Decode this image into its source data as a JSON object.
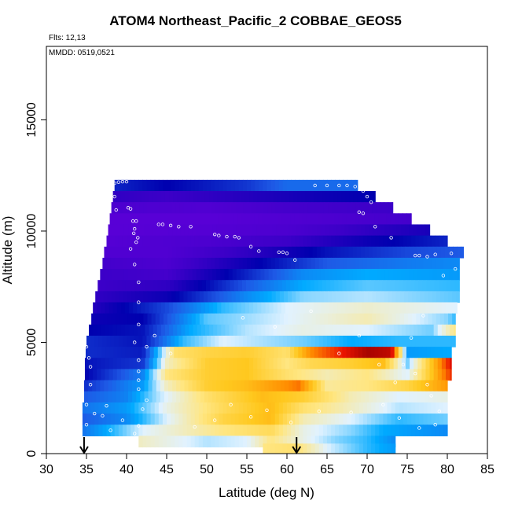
{
  "chart_data": {
    "type": "heatmap",
    "title": "ATOM4 Northeast_Pacific_2 COBBAE_GEOS5",
    "annotations": [
      "Flts: 12,13",
      "MMDD: 0519,0521"
    ],
    "xlabel": "Latitude (deg N)",
    "ylabel": "Altitude (m)",
    "xlim": [
      30,
      85
    ],
    "ylim": [
      0,
      18300
    ],
    "x_ticks": [
      30,
      35,
      40,
      45,
      50,
      55,
      60,
      65,
      70,
      75,
      80,
      85
    ],
    "y_ticks": [
      0,
      5000,
      10000,
      15000
    ],
    "grid": false,
    "legend": "none",
    "arrow_markers_latitude": [
      34.7,
      61.2
    ],
    "altitude_bands": [
      {
        "alt": 12050,
        "lat_min": 38.5,
        "lat_max": 68.8,
        "segments": [
          [
            38.5,
            0.24
          ],
          [
            45,
            0.2
          ],
          [
            55,
            0.26
          ],
          [
            60,
            0.32
          ],
          [
            68.8,
            0.32
          ]
        ]
      },
      {
        "alt": 11550,
        "lat_min": 38.3,
        "lat_max": 71.0,
        "segments": [
          [
            38.3,
            0.12
          ],
          [
            45,
            0.1
          ],
          [
            55,
            0.14
          ],
          [
            65,
            0.18
          ],
          [
            71.0,
            0.2
          ]
        ]
      },
      {
        "alt": 11050,
        "lat_min": 38.1,
        "lat_max": 73.2,
        "segments": [
          [
            38.1,
            0.06
          ],
          [
            50,
            0.05
          ],
          [
            60,
            0.08
          ],
          [
            73.2,
            0.1
          ]
        ]
      },
      {
        "alt": 10550,
        "lat_min": 37.9,
        "lat_max": 75.5,
        "segments": [
          [
            37.9,
            0.03
          ],
          [
            50,
            0.03
          ],
          [
            65,
            0.06
          ],
          [
            75.5,
            0.08
          ]
        ]
      },
      {
        "alt": 10050,
        "lat_min": 37.7,
        "lat_max": 77.8,
        "segments": [
          [
            37.7,
            0.03
          ],
          [
            50,
            0.04
          ],
          [
            60,
            0.06
          ],
          [
            70,
            0.12
          ],
          [
            77.8,
            0.16
          ]
        ]
      },
      {
        "alt": 9550,
        "lat_min": 37.5,
        "lat_max": 80.0,
        "segments": [
          [
            37.5,
            0.04
          ],
          [
            50,
            0.06
          ],
          [
            60,
            0.1
          ],
          [
            70,
            0.18
          ],
          [
            80.0,
            0.24
          ]
        ]
      },
      {
        "alt": 9050,
        "lat_min": 37.2,
        "lat_max": 82.0,
        "segments": [
          [
            37.2,
            0.05
          ],
          [
            45,
            0.05
          ],
          [
            55,
            0.12
          ],
          [
            65,
            0.22
          ],
          [
            75,
            0.28
          ],
          [
            82.0,
            0.3
          ]
        ]
      },
      {
        "alt": 8550,
        "lat_min": 37.0,
        "lat_max": 81.5,
        "segments": [
          [
            37.0,
            0.08
          ],
          [
            45,
            0.06
          ],
          [
            55,
            0.18
          ],
          [
            65,
            0.3
          ],
          [
            75,
            0.34
          ],
          [
            81.5,
            0.36
          ]
        ]
      },
      {
        "alt": 8050,
        "lat_min": 36.7,
        "lat_max": 81.5,
        "segments": [
          [
            36.7,
            0.1
          ],
          [
            45,
            0.08
          ],
          [
            55,
            0.24
          ],
          [
            62,
            0.36
          ],
          [
            70,
            0.4
          ],
          [
            81.5,
            0.38
          ]
        ]
      },
      {
        "alt": 7550,
        "lat_min": 36.4,
        "lat_max": 81.5,
        "segments": [
          [
            36.4,
            0.1
          ],
          [
            45,
            0.12
          ],
          [
            55,
            0.3
          ],
          [
            62,
            0.4
          ],
          [
            70,
            0.44
          ],
          [
            81.5,
            0.42
          ]
        ]
      },
      {
        "alt": 7050,
        "lat_min": 36.1,
        "lat_max": 81.5,
        "segments": [
          [
            36.1,
            0.12
          ],
          [
            45,
            0.18
          ],
          [
            55,
            0.36
          ],
          [
            62,
            0.46
          ],
          [
            70,
            0.48
          ],
          [
            81.5,
            0.44
          ]
        ]
      },
      {
        "alt": 6550,
        "lat_min": 35.8,
        "lat_max": 81.2,
        "segments": [
          [
            35.8,
            0.14
          ],
          [
            45,
            0.28
          ],
          [
            52,
            0.42
          ],
          [
            60,
            0.5
          ],
          [
            70,
            0.54
          ],
          [
            81.2,
            0.5
          ]
        ]
      },
      {
        "alt": 6050,
        "lat_min": 35.6,
        "lat_max": 81.0,
        "segments": [
          [
            35.6,
            0.18
          ],
          [
            42,
            0.2
          ],
          [
            50,
            0.44
          ],
          [
            60,
            0.5
          ],
          [
            70,
            0.56
          ],
          [
            80.0,
            0.46
          ],
          [
            81.0,
            0.42
          ]
        ]
      },
      {
        "alt": 5550,
        "lat_min": 35.3,
        "lat_max": 81.0,
        "segments": [
          [
            35.3,
            0.2
          ],
          [
            42,
            0.22
          ],
          [
            48,
            0.4
          ],
          [
            55,
            0.48
          ],
          [
            62,
            0.52
          ],
          [
            70,
            0.5
          ],
          [
            78,
            0.45
          ],
          [
            81.0,
            0.6
          ]
        ]
      },
      {
        "alt": 5050,
        "lat_min": 35.0,
        "lat_max": 81.0,
        "segments": [
          [
            35.0,
            0.25
          ],
          [
            42,
            0.22
          ],
          [
            47,
            0.42
          ],
          [
            52,
            0.5
          ],
          [
            58,
            0.47
          ],
          [
            62,
            0.45
          ],
          [
            68,
            0.4
          ],
          [
            74,
            0.42
          ],
          [
            81.0,
            0.42
          ]
        ]
      },
      {
        "alt": 4550,
        "lat_min": 34.9,
        "lat_max": 80.5,
        "segments": [
          [
            34.9,
            0.25
          ],
          [
            42,
            0.23
          ],
          [
            46,
            0.62
          ],
          [
            50,
            0.66
          ],
          [
            55,
            0.68
          ],
          [
            60,
            0.62
          ],
          [
            63,
            0.8
          ],
          [
            67,
            0.9
          ],
          [
            70,
            0.98
          ],
          [
            73,
            0.95
          ],
          [
            75,
            0.38
          ],
          [
            80.5,
            0.4
          ]
        ]
      },
      {
        "alt": 4050,
        "lat_min": 34.8,
        "lat_max": 80.5,
        "segments": [
          [
            34.8,
            0.22
          ],
          [
            42,
            0.26
          ],
          [
            45,
            0.55
          ],
          [
            50,
            0.68
          ],
          [
            55,
            0.7
          ],
          [
            60,
            0.6
          ],
          [
            63,
            0.65
          ],
          [
            68,
            0.68
          ],
          [
            72,
            0.72
          ],
          [
            75,
            0.45
          ],
          [
            78,
            0.7
          ],
          [
            80.5,
            0.92
          ]
        ]
      },
      {
        "alt": 3550,
        "lat_min": 34.8,
        "lat_max": 80.5,
        "segments": [
          [
            34.8,
            0.2
          ],
          [
            42,
            0.35
          ],
          [
            45,
            0.6
          ],
          [
            50,
            0.68
          ],
          [
            55,
            0.7
          ],
          [
            60,
            0.62
          ],
          [
            65,
            0.56
          ],
          [
            70,
            0.6
          ],
          [
            75,
            0.5
          ],
          [
            78,
            0.7
          ],
          [
            80.5,
            0.88
          ]
        ]
      },
      {
        "alt": 3050,
        "lat_min": 34.7,
        "lat_max": 80.0,
        "segments": [
          [
            34.7,
            0.25
          ],
          [
            42,
            0.38
          ],
          [
            45,
            0.55
          ],
          [
            50,
            0.68
          ],
          [
            55,
            0.72
          ],
          [
            61.5,
            0.82
          ],
          [
            65,
            0.58
          ],
          [
            70,
            0.6
          ],
          [
            75,
            0.66
          ],
          [
            80.0,
            0.78
          ]
        ]
      },
      {
        "alt": 2550,
        "lat_min": 34.7,
        "lat_max": 80.0,
        "segments": [
          [
            34.7,
            0.3
          ],
          [
            40,
            0.35
          ],
          [
            44,
            0.48
          ],
          [
            50,
            0.62
          ],
          [
            57,
            0.72
          ],
          [
            62,
            0.68
          ],
          [
            68,
            0.56
          ],
          [
            74,
            0.5
          ],
          [
            80.0,
            0.52
          ]
        ]
      },
      {
        "alt": 2050,
        "lat_min": 34.5,
        "lat_max": 80.0,
        "segments": [
          [
            34.5,
            0.33
          ],
          [
            40,
            0.38
          ],
          [
            45,
            0.52
          ],
          [
            52,
            0.64
          ],
          [
            58,
            0.72
          ],
          [
            62,
            0.62
          ],
          [
            68,
            0.55
          ],
          [
            74,
            0.48
          ],
          [
            80.0,
            0.5
          ]
        ]
      },
      {
        "alt": 1550,
        "lat_min": 34.5,
        "lat_max": 80.0,
        "segments": [
          [
            34.5,
            0.3
          ],
          [
            40,
            0.36
          ],
          [
            45,
            0.5
          ],
          [
            52,
            0.66
          ],
          [
            58,
            0.72
          ],
          [
            62,
            0.56
          ],
          [
            68,
            0.5
          ],
          [
            74,
            0.42
          ],
          [
            80.0,
            0.45
          ]
        ]
      },
      {
        "alt": 1050,
        "lat_min": 34.5,
        "lat_max": 80.0,
        "segments": [
          [
            34.5,
            0.33
          ],
          [
            42,
            0.5
          ],
          [
            48,
            0.56
          ],
          [
            52,
            0.6
          ],
          [
            58,
            0.64
          ],
          [
            62,
            0.52
          ],
          [
            68,
            0.46
          ],
          [
            72,
            0.4
          ],
          [
            80.0,
            0.36
          ]
        ]
      },
      {
        "alt": 550,
        "lat_min": 41.5,
        "lat_max": 73.5,
        "segments": [
          [
            41.5,
            0.55
          ],
          [
            45,
            0.52
          ],
          [
            50,
            0.48
          ],
          [
            55,
            0.5
          ],
          [
            58,
            0.6
          ],
          [
            62,
            0.52
          ],
          [
            66,
            0.46
          ],
          [
            70,
            0.42
          ],
          [
            73.5,
            0.36
          ]
        ]
      },
      {
        "alt": 200,
        "lat_min": 57.0,
        "lat_max": 73.5,
        "segments": [
          [
            57.0,
            0.6
          ],
          [
            61,
            0.62
          ],
          [
            65,
            0.5
          ],
          [
            70,
            0.42
          ],
          [
            73.5,
            0.38
          ]
        ]
      }
    ],
    "observation_points": [
      [
        38.5,
        12150
      ],
      [
        39.0,
        12200
      ],
      [
        39.5,
        12220
      ],
      [
        40.0,
        12220
      ],
      [
        38.5,
        11550
      ],
      [
        38.7,
        10950
      ],
      [
        40.8,
        10450
      ],
      [
        41.2,
        10450
      ],
      [
        40.2,
        11050
      ],
      [
        40.5,
        11000
      ],
      [
        41.0,
        10100
      ],
      [
        41.4,
        9700
      ],
      [
        41.2,
        9500
      ],
      [
        40.9,
        9900
      ],
      [
        41.0,
        8500
      ],
      [
        40.5,
        9200
      ],
      [
        44.0,
        10300
      ],
      [
        44.5,
        10300
      ],
      [
        45.5,
        10250
      ],
      [
        46.5,
        10200
      ],
      [
        48.0,
        10200
      ],
      [
        51.0,
        9850
      ],
      [
        51.5,
        9800
      ],
      [
        52.5,
        9750
      ],
      [
        53.5,
        9750
      ],
      [
        54.0,
        9700
      ],
      [
        55.5,
        9300
      ],
      [
        56.5,
        9100
      ],
      [
        59.0,
        9050
      ],
      [
        59.5,
        9050
      ],
      [
        60.0,
        9000
      ],
      [
        61.0,
        8700
      ],
      [
        63.5,
        12050
      ],
      [
        65.0,
        12050
      ],
      [
        66.5,
        12050
      ],
      [
        67.5,
        12050
      ],
      [
        68.5,
        12000
      ],
      [
        69.5,
        11800
      ],
      [
        70.0,
        11550
      ],
      [
        70.5,
        11300
      ],
      [
        69.0,
        10850
      ],
      [
        69.5,
        10800
      ],
      [
        71.0,
        10200
      ],
      [
        73.0,
        9700
      ],
      [
        76.0,
        8900
      ],
      [
        76.5,
        8900
      ],
      [
        77.5,
        8850
      ],
      [
        78.5,
        8950
      ],
      [
        80.5,
        9000
      ],
      [
        81.5,
        9450
      ],
      [
        81.0,
        8300
      ],
      [
        79.5,
        8000
      ],
      [
        35.0,
        4800
      ],
      [
        35.3,
        4300
      ],
      [
        35.5,
        3900
      ],
      [
        35.5,
        3100
      ],
      [
        35.0,
        2200
      ],
      [
        35.0,
        1300
      ],
      [
        36.0,
        1800
      ],
      [
        37.0,
        1700
      ],
      [
        37.5,
        2150
      ],
      [
        38.0,
        1050
      ],
      [
        39.5,
        1500
      ],
      [
        41.0,
        900
      ],
      [
        41.5,
        1250
      ],
      [
        42.0,
        2000
      ],
      [
        42.5,
        2400
      ],
      [
        41.5,
        2900
      ],
      [
        41.5,
        3300
      ],
      [
        41.5,
        3700
      ],
      [
        41.5,
        4200
      ],
      [
        41.0,
        5000
      ],
      [
        41.5,
        5800
      ],
      [
        41.5,
        6800
      ],
      [
        41.5,
        7700
      ],
      [
        42.5,
        4800
      ],
      [
        43.5,
        5300
      ],
      [
        45.5,
        4500
      ],
      [
        48.5,
        1200
      ],
      [
        51.0,
        1500
      ],
      [
        53.0,
        2200
      ],
      [
        55.5,
        1650
      ],
      [
        57.5,
        1950
      ],
      [
        60.5,
        1400
      ],
      [
        64.0,
        1900
      ],
      [
        68.0,
        1850
      ],
      [
        72.0,
        2200
      ],
      [
        73.5,
        3200
      ],
      [
        74.5,
        4000
      ],
      [
        76.0,
        3600
      ],
      [
        77.5,
        3100
      ],
      [
        78.0,
        2600
      ],
      [
        79.0,
        1900
      ],
      [
        78.5,
        1300
      ],
      [
        76.5,
        1150
      ],
      [
        74.0,
        1600
      ],
      [
        54.5,
        6100
      ],
      [
        58.5,
        5700
      ],
      [
        63.0,
        6400
      ],
      [
        66.5,
        4500
      ],
      [
        69.0,
        5300
      ],
      [
        71.5,
        4000
      ],
      [
        75.5,
        5200
      ],
      [
        77.0,
        6200
      ]
    ]
  }
}
